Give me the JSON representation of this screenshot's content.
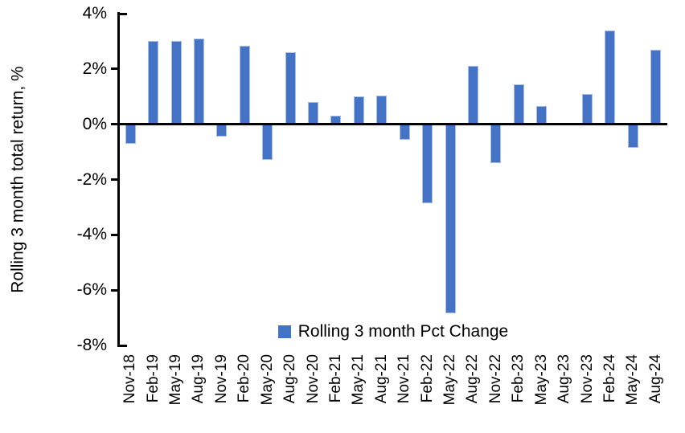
{
  "chart_data": {
    "type": "bar",
    "title": "",
    "xlabel": "",
    "ylabel": "Rolling 3 month total return, %",
    "ylim": [
      -8,
      4
    ],
    "yticks": [
      4,
      2,
      0,
      -2,
      -4,
      -6,
      -8
    ],
    "ytick_labels": [
      "4%",
      "2%",
      "0%",
      "-2%",
      "-4%",
      "-6%",
      "-8%"
    ],
    "grid": false,
    "legend": {
      "position": "bottom-center",
      "entries": [
        "Rolling 3 month Pct Change"
      ]
    },
    "categories": [
      "Nov-18",
      "Feb-19",
      "May-19",
      "Aug-19",
      "Nov-19",
      "Feb-20",
      "May-20",
      "Aug-20",
      "Nov-20",
      "Feb-21",
      "May-21",
      "Aug-21",
      "Nov-21",
      "Feb-22",
      "May-22",
      "Aug-22",
      "Nov-22",
      "Feb-23",
      "May-23",
      "Aug-23",
      "Nov-23",
      "Feb-24",
      "May-24",
      "Aug-24"
    ],
    "values": [
      -0.7,
      3.0,
      3.0,
      3.1,
      -0.45,
      2.85,
      -1.3,
      2.6,
      0.8,
      0.3,
      1.0,
      1.05,
      -0.55,
      -2.85,
      -6.85,
      2.1,
      -1.4,
      1.45,
      0.65,
      0.0,
      1.1,
      3.4,
      -0.85,
      2.7
    ]
  },
  "colors": {
    "bar_fill": "#4472C4",
    "bar_border": "#A6BDE9",
    "axis": "#000000",
    "text": "#000000",
    "background": "#FFFFFF"
  }
}
